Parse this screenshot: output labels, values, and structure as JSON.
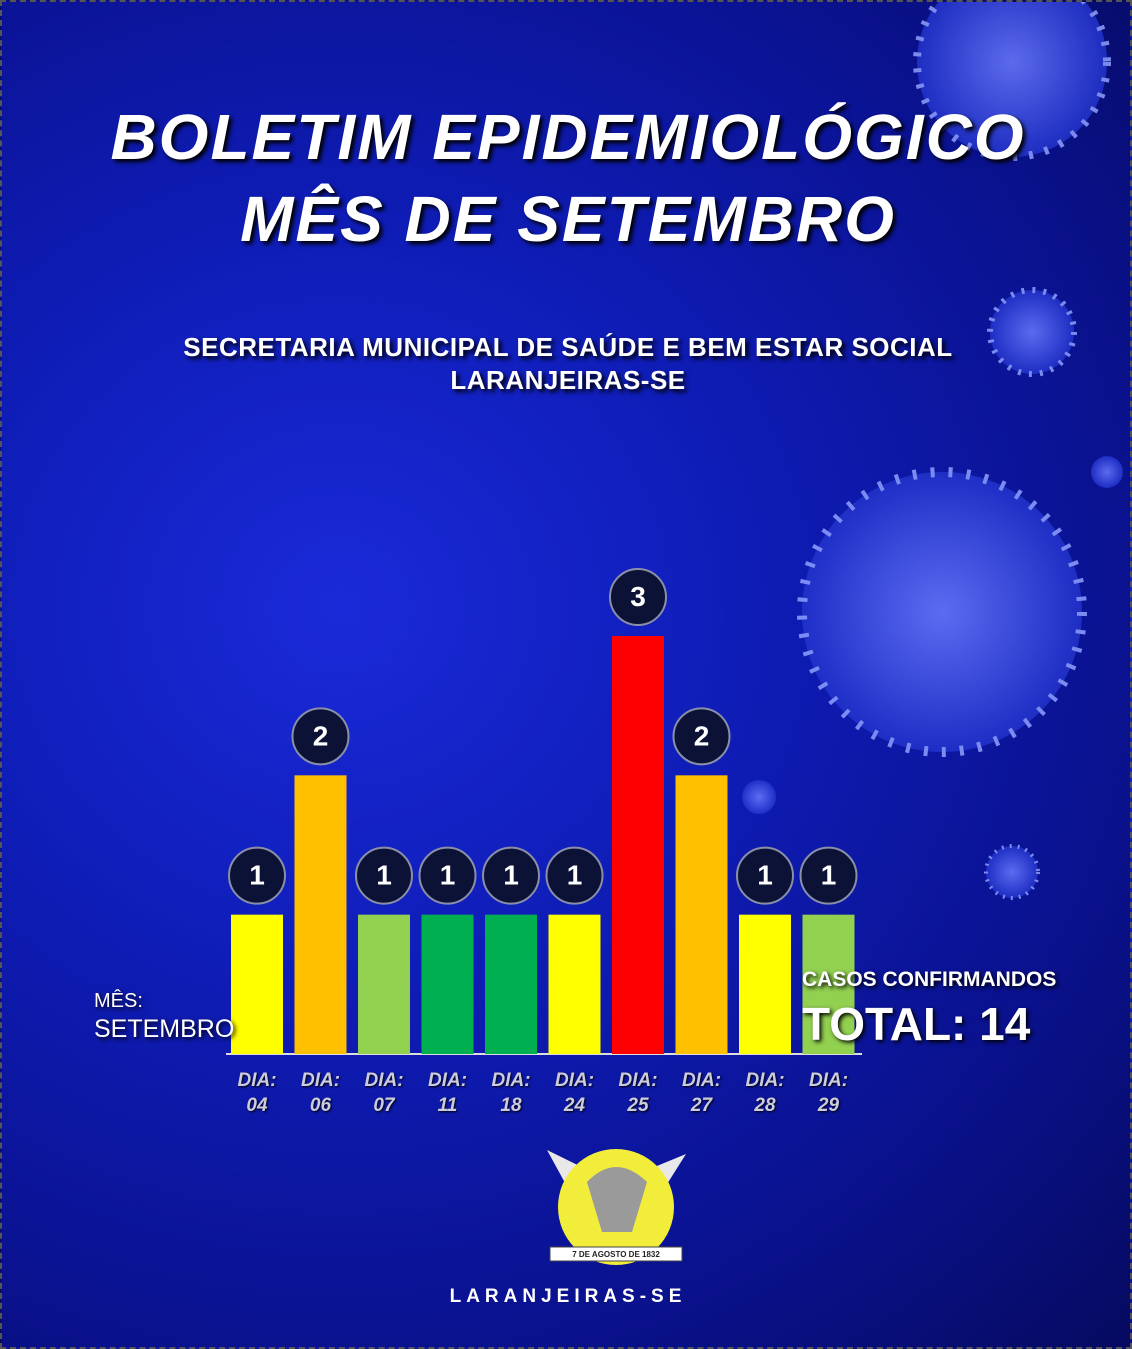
{
  "chart_data": {
    "type": "bar",
    "title_lines": [
      "BOLETIM EPIDEMIOLÓGICO",
      "MÊS DE SETEMBRO"
    ],
    "subtitle_lines": [
      "SECRETARIA MUNICIPAL DE SAÚDE E BEM ESTAR SOCIAL",
      "LARANJEIRAS-SE"
    ],
    "categories": [
      "DIA: 04",
      "DIA: 06",
      "DIA: 07",
      "DIA: 11",
      "DIA: 18",
      "DIA: 24",
      "DIA: 25",
      "DIA: 27",
      "DIA: 28",
      "DIA: 29"
    ],
    "values": [
      1,
      2,
      1,
      1,
      1,
      1,
      3,
      2,
      1,
      1
    ],
    "colors": [
      "#ffff00",
      "#ffc000",
      "#92d050",
      "#00b050",
      "#00b050",
      "#ffff00",
      "#ff0000",
      "#ffc000",
      "#ffff00",
      "#92d050"
    ],
    "month_label": "MÊS:",
    "month": "SETEMBRO",
    "cases_label": "CASOS CONFIRMANDOS",
    "total": "TOTAL: 14",
    "logo_text": "7 DE AGOSTO DE 1832",
    "footer": "LARANJEIRAS-SE"
  }
}
